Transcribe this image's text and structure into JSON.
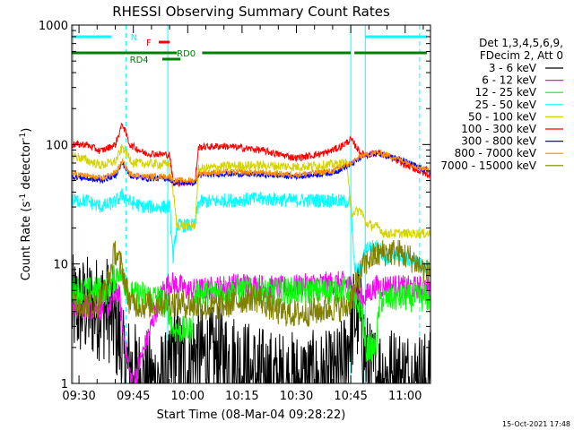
{
  "chart_data": {
    "type": "line",
    "title": "RHESSI Observing Summary Count Rates",
    "xlabel": "Start Time (08-Mar-04 09:28:22)",
    "ylabel_parts": [
      "Count Rate (s",
      "-1",
      " detector",
      "-1",
      ")"
    ],
    "yscale": "log",
    "ylim": [
      1,
      1000
    ],
    "xlim_minutes": [
      "09:28",
      "11:07"
    ],
    "x_ticks": [
      "09:30",
      "09:45",
      "10:00",
      "10:15",
      "10:30",
      "10:45",
      "11:00"
    ],
    "y_ticks": [
      "1",
      "10",
      "100",
      "1000"
    ],
    "legend_title": [
      "Det 1,3,4,5,6,9,",
      "FDecim 2, Att 0"
    ],
    "footer_date": "15-Oct-2021 17:48",
    "series": [
      {
        "name": "3 - 6 keV",
        "color": "#000000",
        "points": [
          [
            "09:28",
            4.3
          ],
          [
            "09:38",
            4.3
          ],
          [
            "09:41",
            2.5
          ],
          [
            "09:42",
            1.5
          ],
          [
            "09:48",
            1
          ],
          [
            "09:55",
            1
          ],
          [
            "09:56",
            2
          ],
          [
            "09:58",
            1.5
          ],
          [
            "10:00",
            1.3
          ],
          [
            "10:02",
            1.8
          ],
          [
            "10:06",
            1.6
          ],
          [
            "10:10",
            1.6
          ],
          [
            "10:14",
            1.4
          ],
          [
            "10:17",
            1.2
          ],
          [
            "10:20",
            1.1
          ],
          [
            "10:24",
            1
          ],
          [
            "10:30",
            1
          ],
          [
            "10:36",
            1
          ],
          [
            "10:40",
            1
          ],
          [
            "10:43",
            1.3
          ],
          [
            "10:45",
            3
          ],
          [
            "10:47",
            4
          ],
          [
            "10:50",
            1.2
          ],
          [
            "11:07",
            1
          ]
        ],
        "noise": 0.45
      },
      {
        "name": "6 - 12 keV",
        "color": "#ff00ff",
        "points": [
          [
            "09:28",
            4.3
          ],
          [
            "09:38",
            4.3
          ],
          [
            "09:41",
            6
          ],
          [
            "09:42",
            3
          ],
          [
            "09:44",
            1.2
          ],
          [
            "09:45",
            1
          ],
          [
            "09:53",
            6
          ],
          [
            "09:55",
            7
          ],
          [
            "09:58",
            6.5
          ],
          [
            "10:00",
            6
          ],
          [
            "10:05",
            6.2
          ],
          [
            "10:10",
            6.5
          ],
          [
            "10:15",
            6.8
          ],
          [
            "10:20",
            6.6
          ],
          [
            "10:25",
            6.3
          ],
          [
            "10:30",
            6.5
          ],
          [
            "10:35",
            6.8
          ],
          [
            "10:40",
            6.9
          ],
          [
            "10:44",
            7
          ],
          [
            "10:48",
            5
          ],
          [
            "10:52",
            6.5
          ],
          [
            "10:56",
            6.6
          ],
          [
            "11:00",
            6.4
          ],
          [
            "11:07",
            6.3
          ]
        ],
        "noise": 0.1
      },
      {
        "name": "12 - 25 keV",
        "color": "#00ff00",
        "points": [
          [
            "09:28",
            6
          ],
          [
            "09:38",
            6
          ],
          [
            "09:41",
            9
          ],
          [
            "09:44",
            5.5
          ],
          [
            "09:48",
            5.5
          ],
          [
            "09:52",
            5.2
          ],
          [
            "09:55",
            4
          ],
          [
            "09:56",
            2.8
          ],
          [
            "10:01",
            2.8
          ],
          [
            "10:02",
            5.5
          ],
          [
            "10:10",
            5.8
          ],
          [
            "10:15",
            6
          ],
          [
            "10:20",
            5.8
          ],
          [
            "10:25",
            5.8
          ],
          [
            "10:30",
            6
          ],
          [
            "10:35",
            5.8
          ],
          [
            "10:40",
            6
          ],
          [
            "10:44",
            6.2
          ],
          [
            "10:46",
            4.5
          ],
          [
            "10:48",
            4.5
          ],
          [
            "10:49",
            2
          ],
          [
            "10:52",
            2
          ],
          [
            "10:53",
            5
          ],
          [
            "10:58",
            5.2
          ],
          [
            "11:07",
            5.2
          ]
        ],
        "noise": 0.12
      },
      {
        "name": "25 - 50 keV",
        "color": "#00ffff",
        "points": [
          [
            "09:28",
            34
          ],
          [
            "09:32",
            34
          ],
          [
            "09:36",
            30
          ],
          [
            "09:40",
            33
          ],
          [
            "09:42",
            38
          ],
          [
            "09:44",
            33
          ],
          [
            "09:48",
            30
          ],
          [
            "09:55",
            30
          ],
          [
            "09:56",
            11
          ],
          [
            "09:57",
            21
          ],
          [
            "10:02",
            21
          ],
          [
            "10:03",
            33
          ],
          [
            "10:10",
            34
          ],
          [
            "10:20",
            35
          ],
          [
            "10:30",
            34
          ],
          [
            "10:40",
            34
          ],
          [
            "10:45",
            33
          ],
          [
            "10:46",
            9
          ],
          [
            "10:48",
            9
          ],
          [
            "10:49",
            14
          ],
          [
            "10:53",
            14
          ],
          [
            "10:54",
            11
          ],
          [
            "10:58",
            11.5
          ],
          [
            "11:03",
            10.5
          ],
          [
            "11:07",
            9
          ]
        ],
        "noise": 0.06
      },
      {
        "name": "50 - 100 keV",
        "color": "#d4d400",
        "points": [
          [
            "09:28",
            82
          ],
          [
            "09:36",
            67
          ],
          [
            "09:40",
            72
          ],
          [
            "09:42",
            95
          ],
          [
            "09:45",
            70
          ],
          [
            "09:55",
            68
          ],
          [
            "09:56",
            40
          ],
          [
            "09:57",
            21
          ],
          [
            "10:02",
            21
          ],
          [
            "10:03",
            62
          ],
          [
            "10:10",
            66
          ],
          [
            "10:20",
            67
          ],
          [
            "10:30",
            65
          ],
          [
            "10:40",
            68
          ],
          [
            "10:44",
            70
          ],
          [
            "10:45",
            27
          ],
          [
            "10:48",
            28
          ],
          [
            "10:49",
            22
          ],
          [
            "10:53",
            20
          ],
          [
            "10:54",
            18
          ],
          [
            "11:07",
            18
          ]
        ],
        "noise": 0.04
      },
      {
        "name": "100 - 300 keV",
        "color": "#ff0000",
        "points": [
          [
            "09:28",
            100
          ],
          [
            "09:32",
            100
          ],
          [
            "09:36",
            88
          ],
          [
            "09:40",
            100
          ],
          [
            "09:42",
            150
          ],
          [
            "09:44",
            100
          ],
          [
            "09:48",
            85
          ],
          [
            "09:55",
            82
          ],
          [
            "09:56",
            48
          ],
          [
            "10:02",
            48
          ],
          [
            "10:03",
            95
          ],
          [
            "10:10",
            97
          ],
          [
            "10:20",
            90
          ],
          [
            "10:25",
            83
          ],
          [
            "10:30",
            77
          ],
          [
            "10:38",
            85
          ],
          [
            "10:42",
            95
          ],
          [
            "10:45",
            110
          ],
          [
            "10:48",
            83
          ],
          [
            "10:50",
            83
          ],
          [
            "10:52",
            85
          ],
          [
            "10:55",
            80
          ],
          [
            "11:00",
            68
          ],
          [
            "11:05",
            58
          ],
          [
            "11:07",
            55
          ]
        ],
        "noise": 0.03
      },
      {
        "name": "300 - 800 keV",
        "color": "#0000ff",
        "points": [
          [
            "09:28",
            54
          ],
          [
            "09:32",
            52
          ],
          [
            "09:36",
            50
          ],
          [
            "09:40",
            55
          ],
          [
            "09:42",
            70
          ],
          [
            "09:44",
            55
          ],
          [
            "09:48",
            52
          ],
          [
            "09:55",
            52
          ],
          [
            "09:56",
            48
          ],
          [
            "10:02",
            48
          ],
          [
            "10:03",
            55
          ],
          [
            "10:10",
            57
          ],
          [
            "10:20",
            56
          ],
          [
            "10:30",
            54
          ],
          [
            "10:40",
            58
          ],
          [
            "10:45",
            68
          ],
          [
            "10:48",
            78
          ],
          [
            "10:50",
            82
          ],
          [
            "10:52",
            85
          ],
          [
            "10:56",
            80
          ],
          [
            "11:00",
            72
          ],
          [
            "11:05",
            62
          ],
          [
            "11:07",
            60
          ]
        ],
        "noise": 0.025
      },
      {
        "name": "800 - 7000 keV",
        "color": "#ff8c00",
        "points": [
          [
            "09:28",
            57
          ],
          [
            "09:32",
            55
          ],
          [
            "09:36",
            52
          ],
          [
            "09:40",
            58
          ],
          [
            "09:42",
            72
          ],
          [
            "09:44",
            57
          ],
          [
            "09:48",
            54
          ],
          [
            "09:55",
            54
          ],
          [
            "09:56",
            50
          ],
          [
            "10:02",
            50
          ],
          [
            "10:03",
            57
          ],
          [
            "10:10",
            59
          ],
          [
            "10:20",
            58
          ],
          [
            "10:30",
            56
          ],
          [
            "10:40",
            60
          ],
          [
            "10:45",
            70
          ],
          [
            "10:48",
            80
          ],
          [
            "10:50",
            83
          ],
          [
            "10:52",
            86
          ],
          [
            "10:56",
            80
          ],
          [
            "11:00",
            72
          ],
          [
            "11:05",
            63
          ],
          [
            "11:07",
            61
          ]
        ],
        "noise": 0.025
      },
      {
        "name": "7000 - 15000 keV",
        "color": "#808000",
        "points": [
          [
            "09:28",
            4.6
          ],
          [
            "09:35",
            4.6
          ],
          [
            "09:38",
            7
          ],
          [
            "09:40",
            13
          ],
          [
            "09:42",
            9
          ],
          [
            "09:44",
            4.8
          ],
          [
            "09:48",
            4.5
          ],
          [
            "09:55",
            4.8
          ],
          [
            "09:58",
            4.7
          ],
          [
            "10:05",
            4.3
          ],
          [
            "10:10",
            4.5
          ],
          [
            "10:15",
            5
          ],
          [
            "10:18",
            5.3
          ],
          [
            "10:20",
            5
          ],
          [
            "10:25",
            4
          ],
          [
            "10:30",
            3.8
          ],
          [
            "10:35",
            4
          ],
          [
            "10:40",
            4.3
          ],
          [
            "10:44",
            4.3
          ],
          [
            "10:46",
            6
          ],
          [
            "10:48",
            9
          ],
          [
            "10:50",
            11
          ],
          [
            "10:54",
            12.5
          ],
          [
            "10:58",
            12.5
          ],
          [
            "11:02",
            11
          ],
          [
            "11:05",
            9
          ],
          [
            "11:07",
            8
          ]
        ],
        "noise": 0.12
      }
    ],
    "annotations": [
      {
        "label": "N",
        "color": "#00ffff",
        "segments": [
          [
            "09:28",
            "09:39"
          ],
          [
            "10:49",
            "11:06"
          ]
        ],
        "level": 1
      },
      {
        "label": "F",
        "color": "#ff0000",
        "segments": [
          [
            "09:52",
            "09:55"
          ]
        ],
        "level": 2
      },
      {
        "label": "RD0",
        "color": "#008000",
        "segments": [
          [
            "09:28",
            "09:57"
          ],
          [
            "10:04",
            "10:45"
          ],
          [
            "10:46",
            "11:06"
          ]
        ],
        "level": 3,
        "label_at": "09:57"
      },
      {
        "label": "RD4",
        "color": "#008000",
        "segments": [
          [
            "09:53",
            "09:58"
          ]
        ],
        "level": 4,
        "label_at": "09:44"
      }
    ],
    "vlines": [
      {
        "time": "09:28:22",
        "color": "#00ffff",
        "style": "solid"
      },
      {
        "time": "09:43",
        "color": "#00ffff",
        "style": "dashed"
      },
      {
        "time": "09:54:30",
        "color": "#00ffff",
        "style": "solid"
      },
      {
        "time": "10:45",
        "color": "#00ffff",
        "style": "solid"
      },
      {
        "time": "10:49",
        "color": "#00ffff",
        "style": "solid"
      },
      {
        "time": "11:04",
        "color": "#00ffff",
        "style": "dashed"
      }
    ]
  }
}
